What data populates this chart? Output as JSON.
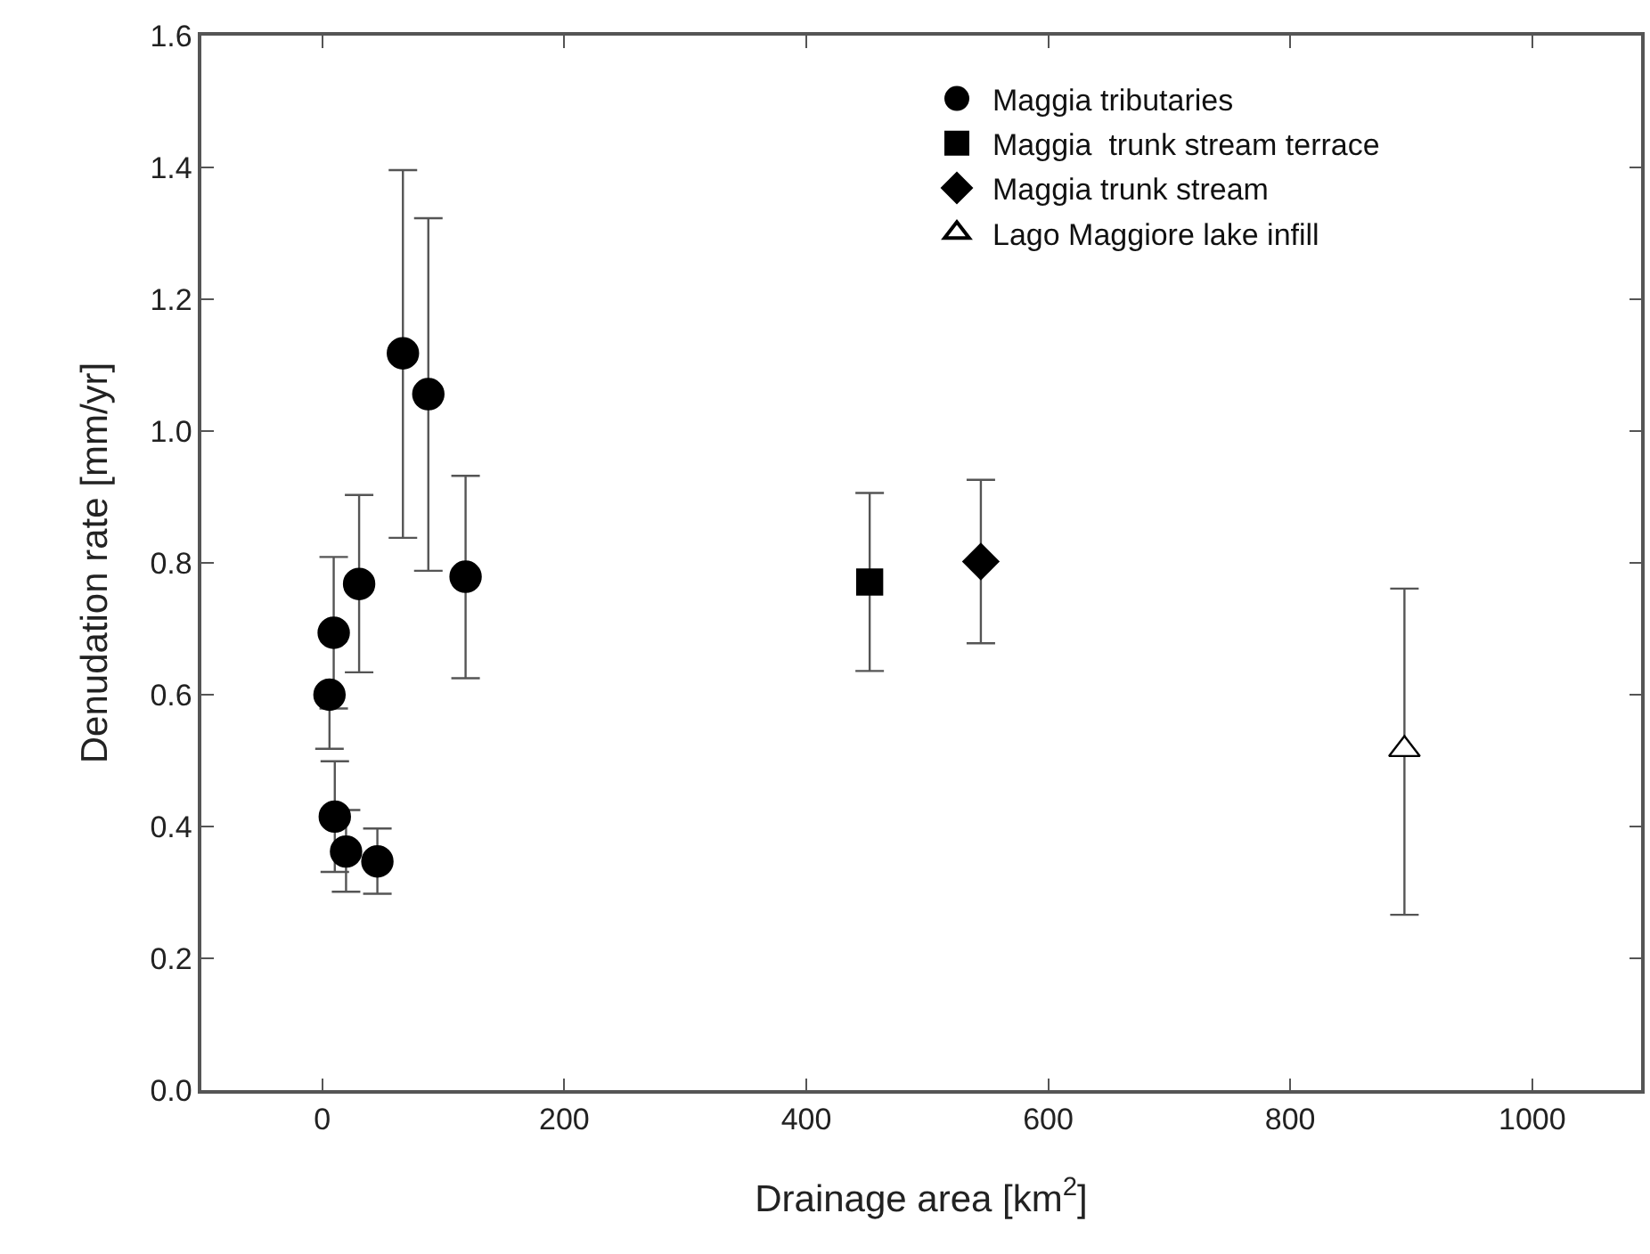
{
  "chart_data": {
    "type": "scatter",
    "xlabel": "Drainage area [km$^{2}$]",
    "ylabel": "Denudation rate [mm/yr]",
    "xlim": [
      -100,
      1090
    ],
    "xticks": [
      0,
      200,
      400,
      600,
      800,
      1000
    ],
    "ylim": [
      0,
      1.6
    ],
    "yticks": [
      {
        "value": 0,
        "label": "0.0"
      },
      {
        "value": 0.2,
        "label": "0.2"
      },
      {
        "value": 0.4,
        "label": "0.4"
      },
      {
        "value": 0.6,
        "label": "0.6"
      },
      {
        "value": 0.8,
        "label": "0.8"
      },
      {
        "value": 1.0,
        "label": "1.0"
      },
      {
        "value": 1.2,
        "label": "1.2"
      },
      {
        "value": 1.4,
        "label": "1.4"
      },
      {
        "value": 1.6,
        "label": "1.6"
      }
    ],
    "legend": "top right",
    "series": [
      {
        "name": "Maggia tributaries",
        "color": "#000000",
        "marker": "circle",
        "x": [
          5.9,
          9.4,
          10.3,
          19.6,
          45.5,
          30.4,
          66.6,
          87.6,
          118.4
        ],
        "values": [
          0.6,
          0.694,
          0.415,
          0.362,
          0.347,
          0.768,
          1.118,
          1.056,
          0.779
        ],
        "errors": [
          [
            0.518,
            0.6
          ],
          [
            0.579,
            0.809
          ],
          [
            0.331,
            0.499
          ],
          [
            0.301,
            0.425
          ],
          [
            0.298,
            0.397
          ],
          [
            0.634,
            0.903
          ],
          [
            0.838,
            1.396
          ],
          [
            0.788,
            1.323
          ],
          [
            0.625,
            0.932
          ]
        ]
      },
      {
        "name": "Maggia  trunk stream terrace",
        "color": "#000000",
        "marker": "square",
        "x": [
          452.4
        ],
        "values": [
          0.771
        ],
        "errors": [
          [
            0.636,
            0.906
          ]
        ]
      },
      {
        "name": "Maggia trunk stream",
        "color": "#000000",
        "marker": "diamond",
        "x": [
          544.3
        ],
        "values": [
          0.802
        ],
        "errors": [
          [
            0.678,
            0.926
          ]
        ]
      },
      {
        "name": "Lago Maggiore lake infill",
        "color": "#ffffff",
        "marker": "triangle",
        "x": [
          894.4
        ],
        "values": [
          0.517
        ],
        "errors": [
          [
            0.266,
            0.761
          ]
        ]
      }
    ]
  }
}
